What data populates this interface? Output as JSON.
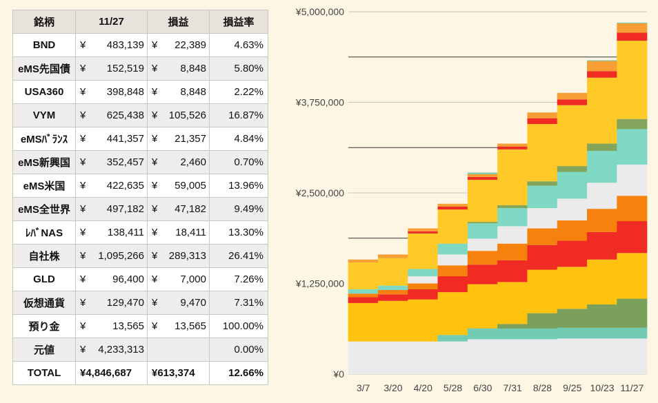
{
  "table": {
    "headers": [
      "銘柄",
      "11/27",
      "損益",
      "損益率"
    ],
    "currency_symbol": "¥",
    "rows": [
      {
        "name": "BND",
        "value": "483,139",
        "profit": "22,389",
        "rate": "4.63%"
      },
      {
        "name": "eMS先国債",
        "value": "152,519",
        "profit": "8,848",
        "rate": "5.80%"
      },
      {
        "name": "USA360",
        "value": "398,848",
        "profit": "8,848",
        "rate": "2.22%"
      },
      {
        "name": "VYM",
        "value": "625,438",
        "profit": "105,526",
        "rate": "16.87%"
      },
      {
        "name": "eMSﾊﾞﾗﾝｽ",
        "value": "441,357",
        "profit": "21,357",
        "rate": "4.84%"
      },
      {
        "name": "eMS新興国",
        "value": "352,457",
        "profit": "2,460",
        "rate": "0.70%"
      },
      {
        "name": "eMS米国",
        "value": "422,635",
        "profit": "59,005",
        "rate": "13.96%"
      },
      {
        "name": "eMS全世界",
        "value": "497,182",
        "profit": "47,182",
        "rate": "9.49%"
      },
      {
        "name": "ﾚﾊﾞNAS",
        "value": "138,411",
        "profit": "18,411",
        "rate": "13.30%"
      },
      {
        "name": "自社株",
        "value": "1,095,266",
        "profit": "289,313",
        "rate": "26.41%"
      },
      {
        "name": "GLD",
        "value": "96,400",
        "profit": "7,000",
        "rate": "7.26%"
      },
      {
        "name": "仮想通貨",
        "value": "129,470",
        "profit": "9,470",
        "rate": "7.31%"
      },
      {
        "name": "預り金",
        "value": "13,565",
        "profit": "13,565",
        "rate": "100.00%"
      },
      {
        "name": "元値",
        "value": "4,233,313",
        "profit": "",
        "rate": "0.00%"
      }
    ],
    "total": {
      "name": "TOTAL",
      "value": "¥4,846,687",
      "profit": "¥613,374",
      "rate": "12.66%"
    }
  },
  "chart_data": {
    "type": "bar",
    "stacked": true,
    "categories": [
      "3/7",
      "3/20",
      "4/20",
      "5/28",
      "6/30",
      "7/31",
      "8/28",
      "9/25",
      "10/23",
      "11/27"
    ],
    "y_tick_labels": [
      "¥0",
      "¥1,250,000",
      "¥2,500,000",
      "¥3,750,000",
      "¥5,000,000"
    ],
    "ylim": [
      0,
      5000000
    ],
    "grid": true,
    "legend": "none",
    "series": [
      {
        "color": "#ebebeb",
        "values": [
          450000,
          450000,
          450000,
          450000,
          480000,
          480000,
          480000,
          490000,
          490000,
          490000
        ]
      },
      {
        "color": "#72cbb3",
        "values": [
          0,
          0,
          0,
          90000,
          150000,
          150000,
          150000,
          150000,
          150000,
          150000
        ]
      },
      {
        "color": "#7ba05b",
        "values": [
          0,
          0,
          0,
          0,
          0,
          60000,
          210000,
          260000,
          320000,
          400000
        ]
      },
      {
        "color": "#ffc20e",
        "values": [
          530000,
          560000,
          580000,
          590000,
          610000,
          580000,
          600000,
          580000,
          620000,
          630000
        ]
      },
      {
        "color": "#ef2b24",
        "values": [
          80000,
          90000,
          140000,
          220000,
          270000,
          300000,
          340000,
          360000,
          380000,
          440000
        ]
      },
      {
        "color": "#f6820d",
        "values": [
          50000,
          60000,
          80000,
          150000,
          190000,
          230000,
          230000,
          280000,
          320000,
          350000
        ]
      },
      {
        "color": "#ebebeb",
        "values": [
          0,
          0,
          100000,
          150000,
          170000,
          240000,
          280000,
          300000,
          360000,
          430000
        ]
      },
      {
        "color": "#7fd8c4",
        "values": [
          60000,
          60000,
          100000,
          150000,
          210000,
          250000,
          310000,
          370000,
          440000,
          490000
        ]
      },
      {
        "color": "#84a55c",
        "values": [
          0,
          0,
          0,
          0,
          20000,
          40000,
          60000,
          80000,
          100000,
          140000
        ]
      },
      {
        "color": "#ffca28",
        "values": [
          370000,
          380000,
          490000,
          470000,
          580000,
          770000,
          790000,
          840000,
          910000,
          1080000
        ]
      },
      {
        "color": "#ef2b24",
        "values": [
          0,
          0,
          30000,
          40000,
          40000,
          40000,
          80000,
          80000,
          90000,
          110000
        ]
      },
      {
        "color": "#f79e34",
        "values": [
          40000,
          50000,
          40000,
          40000,
          40000,
          40000,
          80000,
          90000,
          140000,
          130000
        ]
      },
      {
        "color": "#72cbb3",
        "values": [
          0,
          0,
          0,
          0,
          20000,
          0,
          0,
          0,
          10000,
          10000
        ]
      }
    ]
  }
}
